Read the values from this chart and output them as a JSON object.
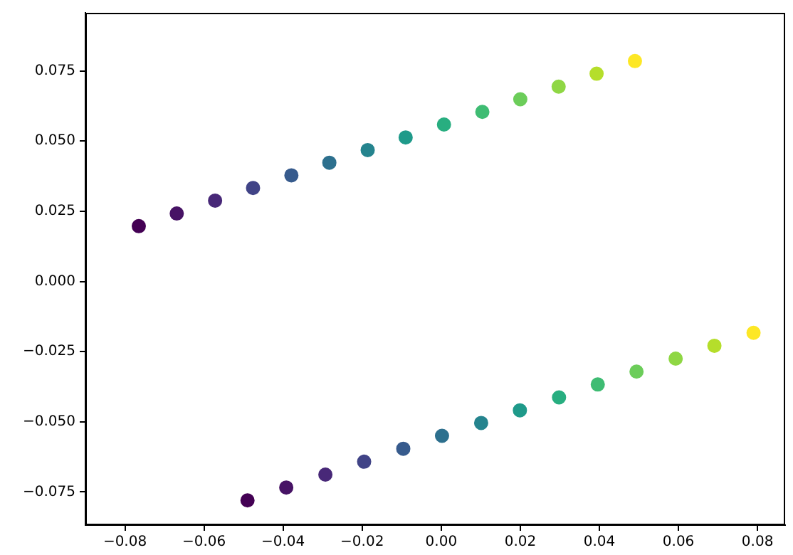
{
  "chart_data": {
    "type": "scatter",
    "marker": "circle",
    "grid": false,
    "legend": false,
    "xlim": [
      -0.09,
      0.087
    ],
    "ylim": [
      -0.0868,
      0.0957
    ],
    "xticks": [
      {
        "value": -0.08,
        "label": "−0.08"
      },
      {
        "value": -0.06,
        "label": "−0.06"
      },
      {
        "value": -0.04,
        "label": "−0.04"
      },
      {
        "value": -0.02,
        "label": "−0.02"
      },
      {
        "value": 0,
        "label": "0.00"
      },
      {
        "value": 0.02,
        "label": "0.02"
      },
      {
        "value": 0.04,
        "label": "0.04"
      },
      {
        "value": 0.06,
        "label": "0.06"
      },
      {
        "value": 0.08,
        "label": "0.08"
      }
    ],
    "yticks": [
      {
        "value": -0.075,
        "label": "−0.075"
      },
      {
        "value": -0.05,
        "label": "−0.050"
      },
      {
        "value": -0.025,
        "label": "−0.025"
      },
      {
        "value": 0,
        "label": "0.000"
      },
      {
        "value": 0.025,
        "label": "0.025"
      },
      {
        "value": 0.05,
        "label": "0.050"
      },
      {
        "value": 0.075,
        "label": "0.075"
      }
    ],
    "series": [
      {
        "x": [
          -0.0765,
          -0.0669,
          -0.0572,
          -0.0476,
          -0.0379,
          -0.0283,
          -0.0186,
          -0.009,
          0.0007,
          0.0104,
          0.02,
          0.0297,
          0.0393,
          0.049
        ],
        "values": [
          0.0197,
          0.0242,
          0.0288,
          0.0333,
          0.0378,
          0.0423,
          0.0468,
          0.0513,
          0.0559,
          0.0604,
          0.0649,
          0.0694,
          0.074,
          0.0785
        ],
        "colors": [
          "#440154",
          "#471365",
          "#482878",
          "#414487",
          "#375b8d",
          "#2d708e",
          "#25848e",
          "#1f9a8a",
          "#28ae80",
          "#3fbc73",
          "#6ccd5a",
          "#8fd744",
          "#b5de2b",
          "#fde725"
        ]
      },
      {
        "x": [
          -0.049,
          -0.0392,
          -0.0293,
          -0.0195,
          -0.0096,
          0.0002,
          0.0101,
          0.0199,
          0.0298,
          0.0396,
          0.0494,
          0.0593,
          0.0691,
          0.079
        ],
        "values": [
          -0.078,
          -0.0734,
          -0.0688,
          -0.0642,
          -0.0596,
          -0.055,
          -0.0504,
          -0.0459,
          -0.0413,
          -0.0367,
          -0.0321,
          -0.0275,
          -0.0229,
          -0.0183
        ],
        "colors": [
          "#440154",
          "#471365",
          "#482878",
          "#414487",
          "#375b8d",
          "#2d708e",
          "#25848e",
          "#1f9a8a",
          "#28ae80",
          "#3fbc73",
          "#6ccd5a",
          "#8fd744",
          "#b5de2b",
          "#fde725"
        ]
      }
    ]
  }
}
